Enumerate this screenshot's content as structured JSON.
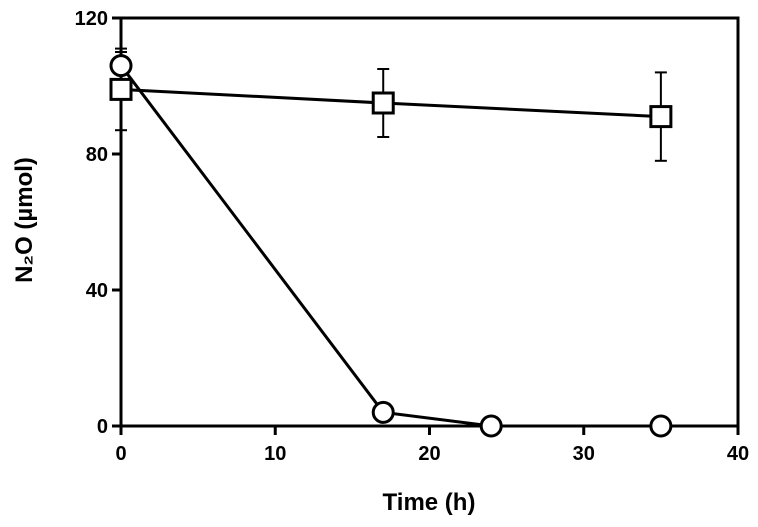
{
  "chart_data": {
    "type": "scatter",
    "xlabel": "Time (h)",
    "ylabel": "N₂O (µmol)",
    "xlim": [
      0,
      40
    ],
    "ylim": [
      0,
      120
    ],
    "xticks": [
      0,
      10,
      20,
      30,
      40
    ],
    "yticks": [
      0,
      40,
      80,
      120
    ],
    "xtick_labels": [
      "0",
      "10",
      "20",
      "30",
      "40"
    ],
    "ytick_labels": [
      "0",
      "40",
      "80",
      "120"
    ],
    "grid": false,
    "series": [
      {
        "marker": "square",
        "x": [
          0,
          17,
          35
        ],
        "y": [
          99,
          95,
          91
        ],
        "err": [
          12,
          10,
          13
        ],
        "color": "#000000"
      },
      {
        "marker": "circle",
        "x": [
          0,
          17,
          24,
          35
        ],
        "y": [
          106,
          4,
          0,
          0
        ],
        "err": [
          4,
          0,
          0,
          0
        ],
        "color": "#000000"
      }
    ]
  }
}
